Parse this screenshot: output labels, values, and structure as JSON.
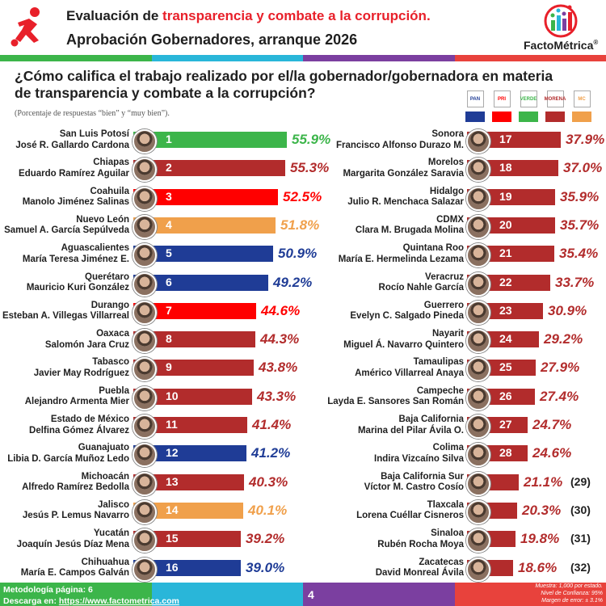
{
  "header": {
    "title_prefix": "Evaluación de ",
    "title_highlight": "transparencia y combate a la corrupción.",
    "subtitle": "Aprobación Gobernadores, arranque 2026",
    "brand": "FactoMétrica",
    "brand_mark": "®"
  },
  "question": "¿Cómo califica el trabajo realizado por el/la gobernador/gobernadora en materia de transparencia y combate a la corrupción?",
  "note": "(Porcentaje de respuestas “bien” y “muy bien”).",
  "legend": [
    {
      "logo": "PAN",
      "color": "#1f3c96"
    },
    {
      "logo": "PRI",
      "color": "#ff0000"
    },
    {
      "logo": "VERDE",
      "color": "#3cb54a"
    },
    {
      "logo": "MORENA",
      "color": "#b22c2c"
    },
    {
      "logo": "MC",
      "color": "#f0a04b"
    }
  ],
  "colors": {
    "PAN": "#1f3c96",
    "PRI": "#ff0000",
    "VERDE": "#3cb54a",
    "MORENA": "#b22c2c",
    "MC": "#f0a04b"
  },
  "chart_data": {
    "type": "bar",
    "title": "Evaluación de transparencia y combate a la corrupción.",
    "unit": "%",
    "left_column": [
      {
        "rank": "1",
        "state": "San Luis Potosí",
        "governor": "José R. Gallardo Cardona",
        "value": 55.9,
        "label": "55.9%",
        "party": "VERDE"
      },
      {
        "rank": "2",
        "state": "Chiapas",
        "governor": "Eduardo Ramírez Aguilar",
        "value": 55.3,
        "label": "55.3%",
        "party": "MORENA"
      },
      {
        "rank": "3",
        "state": "Coahuila",
        "governor": "Manolo Jiménez Salinas",
        "value": 52.5,
        "label": "52.5%",
        "party": "PRI"
      },
      {
        "rank": "4",
        "state": "Nuevo León",
        "governor": "Samuel A. García Sepúlveda",
        "value": 51.8,
        "label": "51.8%",
        "party": "MC"
      },
      {
        "rank": "5",
        "state": "Aguascalientes",
        "governor": "María Teresa Jiménez E.",
        "value": 50.9,
        "label": "50.9%",
        "party": "PAN"
      },
      {
        "rank": "6",
        "state": "Querétaro",
        "governor": "Mauricio Kuri González",
        "value": 49.2,
        "label": "49.2%",
        "party": "PAN"
      },
      {
        "rank": "7",
        "state": "Durango",
        "governor": "Esteban A. Villegas Villarreal",
        "value": 44.6,
        "label": "44.6%",
        "party": "PRI"
      },
      {
        "rank": "8",
        "state": "Oaxaca",
        "governor": "Salomón Jara Cruz",
        "value": 44.3,
        "label": "44.3%",
        "party": "MORENA"
      },
      {
        "rank": "9",
        "state": "Tabasco",
        "governor": "Javier May Rodríguez",
        "value": 43.8,
        "label": "43.8%",
        "party": "MORENA"
      },
      {
        "rank": "10",
        "state": "Puebla",
        "governor": "Alejandro Armenta Mier",
        "value": 43.3,
        "label": "43.3%",
        "party": "MORENA"
      },
      {
        "rank": "11",
        "state": "Estado de México",
        "governor": "Delfina Gómez Álvarez",
        "value": 41.4,
        "label": "41.4%",
        "party": "MORENA"
      },
      {
        "rank": "12",
        "state": "Guanajuato",
        "governor": "Libia D. García Muñoz Ledo",
        "value": 41.2,
        "label": "41.2%",
        "party": "PAN"
      },
      {
        "rank": "13",
        "state": "Michoacán",
        "governor": "Alfredo Ramírez Bedolla",
        "value": 40.3,
        "label": "40.3%",
        "party": "MORENA"
      },
      {
        "rank": "14",
        "state": "Jalisco",
        "governor": "Jesús P. Lemus Navarro",
        "value": 40.1,
        "label": "40.1%",
        "party": "MC"
      },
      {
        "rank": "15",
        "state": "Yucatán",
        "governor": "Joaquín Jesús Díaz Mena",
        "value": 39.2,
        "label": "39.2%",
        "party": "MORENA"
      },
      {
        "rank": "16",
        "state": "Chihuahua",
        "governor": "María E. Campos Galván",
        "value": 39.0,
        "label": "39.0%",
        "party": "PAN"
      }
    ],
    "right_column": [
      {
        "rank": "17",
        "state": "Sonora",
        "governor": "Francisco Alfonso Durazo M.",
        "value": 37.9,
        "label": "37.9%",
        "party": "MORENA"
      },
      {
        "rank": "18",
        "state": "Morelos",
        "governor": "Margarita González Saravia",
        "value": 37.0,
        "label": "37.0%",
        "party": "MORENA"
      },
      {
        "rank": "19",
        "state": "Hidalgo",
        "governor": "Julio R. Menchaca Salazar",
        "value": 35.9,
        "label": "35.9%",
        "party": "MORENA"
      },
      {
        "rank": "20",
        "state": "CDMX",
        "governor": "Clara M. Brugada Molina",
        "value": 35.7,
        "label": "35.7%",
        "party": "MORENA"
      },
      {
        "rank": "21",
        "state": "Quintana Roo",
        "governor": "María E. Hermelinda Lezama",
        "value": 35.4,
        "label": "35.4%",
        "party": "MORENA"
      },
      {
        "rank": "22",
        "state": "Veracruz",
        "governor": "Rocío Nahle García",
        "value": 33.7,
        "label": "33.7%",
        "party": "MORENA"
      },
      {
        "rank": "23",
        "state": "Guerrero",
        "governor": "Evelyn C. Salgado Pineda",
        "value": 30.9,
        "label": "30.9%",
        "party": "MORENA"
      },
      {
        "rank": "24",
        "state": "Nayarit",
        "governor": "Miguel Á. Navarro Quintero",
        "value": 29.2,
        "label": "29.2%",
        "party": "MORENA"
      },
      {
        "rank": "25",
        "state": "Tamaulipas",
        "governor": "Américo Villarreal Anaya",
        "value": 27.9,
        "label": "27.9%",
        "party": "MORENA"
      },
      {
        "rank": "26",
        "state": "Campeche",
        "governor": "Layda E. Sansores San Román",
        "value": 27.4,
        "label": "27.4%",
        "party": "MORENA"
      },
      {
        "rank": "27",
        "state": "Baja California",
        "governor": "Marina del Pilar Ávila O.",
        "value": 24.7,
        "label": "24.7%",
        "party": "MORENA"
      },
      {
        "rank": "28",
        "state": "Colima",
        "governor": "Indira Vizcaíno Silva",
        "value": 24.6,
        "label": "24.6%",
        "party": "MORENA"
      },
      {
        "rank": "",
        "state": "Baja California Sur",
        "governor": "Víctor M. Castro Cosío",
        "value": 21.1,
        "label": "21.1%",
        "party": "MORENA",
        "extra": "(29)"
      },
      {
        "rank": "",
        "state": "Tlaxcala",
        "governor": "Lorena Cuéllar Cisneros",
        "value": 20.3,
        "label": "20.3%",
        "party": "MORENA",
        "extra": "(30)"
      },
      {
        "rank": "",
        "state": "Sinaloa",
        "governor": "Rubén Rocha Moya",
        "value": 19.8,
        "label": "19.8%",
        "party": "MORENA",
        "extra": "(31)"
      },
      {
        "rank": "",
        "state": "Zacatecas",
        "governor": "David Monreal Ávila",
        "value": 18.6,
        "label": "18.6%",
        "party": "MORENA",
        "extra": "(32)"
      }
    ]
  },
  "footer": {
    "methodology": "Metodología página: 6",
    "download_prefix": "Descarga en: ",
    "download_url": "https://www.factometrica.com",
    "page": "4",
    "sample": "Muestra:  1,000 por estado.",
    "confidence": "Nivel de Confianza: 95%",
    "margin": "Margen de error: ± 3.1%"
  },
  "bar_colors": [
    "#3cb54a",
    "#29b6d9",
    "#7b3fa0",
    "#e8423c"
  ]
}
